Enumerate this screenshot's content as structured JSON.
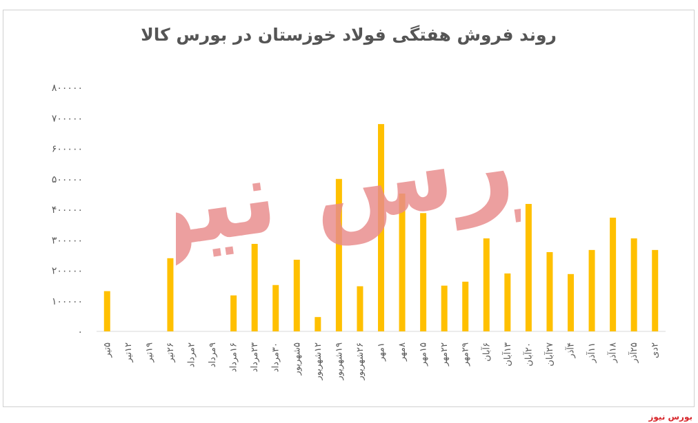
{
  "chart_data": {
    "type": "bar",
    "title": "روند فروش هفتگی فولاد خوزستان در بورس کالا",
    "xlabel": "",
    "ylabel": "",
    "ylim": [
      0,
      800000
    ],
    "yticks": [
      "۰",
      "۱۰۰۰۰۰",
      "۲۰۰۰۰۰",
      "۳۰۰۰۰۰",
      "۴۰۰۰۰۰",
      "۵۰۰۰۰۰",
      "۶۰۰۰۰۰",
      "۷۰۰۰۰۰",
      "۸۰۰۰۰۰"
    ],
    "categories": [
      "۵تیر",
      "۱۲تیر",
      "۱۹تیر",
      "۲۶تیر",
      "۲مرداد",
      "۹مرداد",
      "۱۶مرداد",
      "۲۳مرداد",
      "۳۰مرداد",
      "۵شهریور",
      "۱۲شهریور",
      "۱۹شهریور",
      "۲۶شهریور",
      "۱مهر",
      "۸مهر",
      "۱۵مهر",
      "۲۲مهر",
      "۲۹مهر",
      "۶آبان",
      "۱۳آبان",
      "۲۰آبان",
      "۲۷آبان",
      "۴آذر",
      "۱۱آذر",
      "۱۸آذر",
      "۲۵آذر",
      "۲دی"
    ],
    "values": [
      132000,
      0,
      0,
      240000,
      0,
      0,
      118000,
      287000,
      152000,
      235000,
      47000,
      500000,
      148000,
      680000,
      452000,
      388000,
      150000,
      163000,
      305000,
      190000,
      418000,
      260000,
      188000,
      267000,
      373000,
      305000,
      267000
    ],
    "bar_color": "#FFC000",
    "grid": false
  },
  "watermark": {
    "text": "بورس نیوز",
    "color": "#E88B8B"
  },
  "source": {
    "text": "بورس نیوز",
    "color": "#d7262b"
  }
}
